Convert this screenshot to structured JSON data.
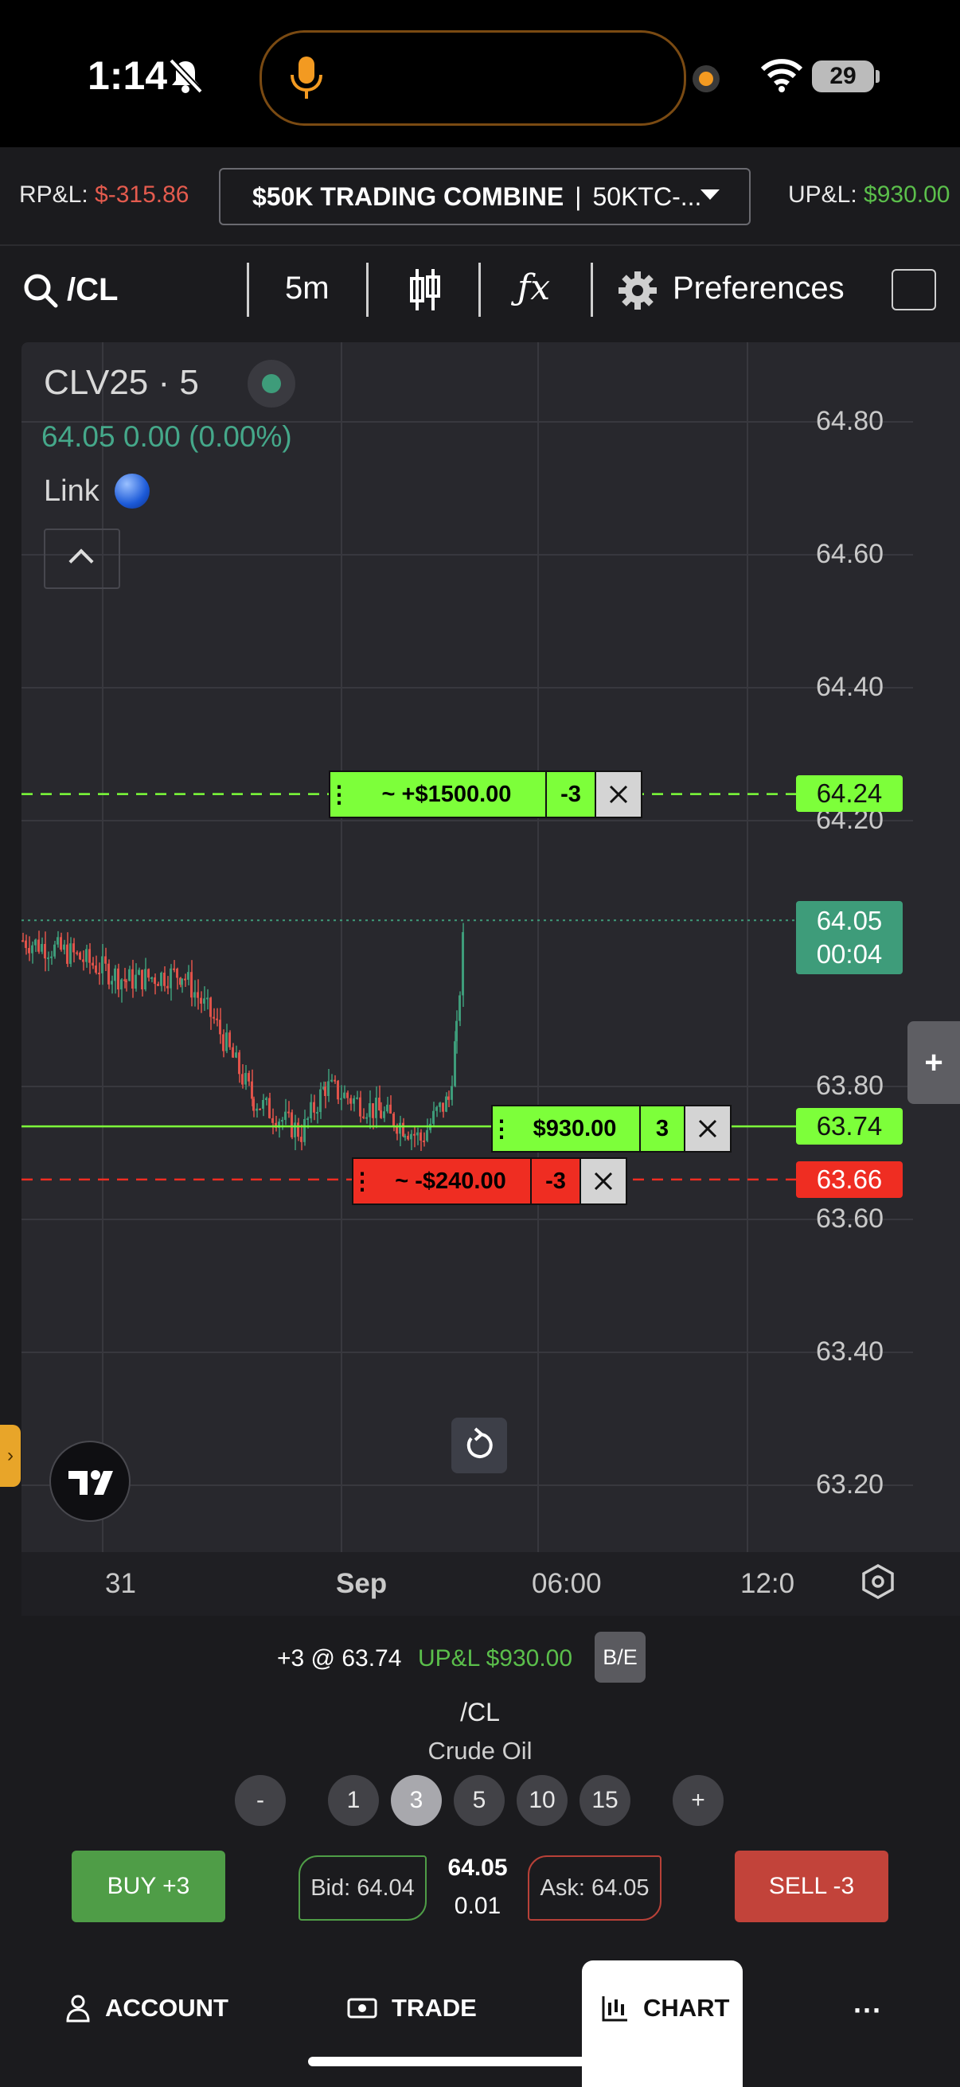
{
  "status_bar": {
    "time": "1:14",
    "battery": "29"
  },
  "account_bar": {
    "rpl_label": "RP&L: ",
    "rpl_value": "$-315.86",
    "account_name": "$50K TRADING COMBINE",
    "separator": "|",
    "account_id": "50KTC-...",
    "upl_label": "UP&L: ",
    "upl_value": "$930.00"
  },
  "toolbar": {
    "symbol": "/CL",
    "interval": "5m",
    "fx_label": "ƒx",
    "preferences": "Preferences"
  },
  "chart_legend": {
    "title": "CLV25 · 5",
    "quote": "64.05  0.00 (0.00%)",
    "link_label": "Link"
  },
  "price_axis": {
    "ticks": [
      "64.80",
      "64.60",
      "64.40",
      "64.20",
      "63.80",
      "63.60",
      "63.40",
      "63.20"
    ]
  },
  "time_axis": {
    "ticks": [
      "31",
      "Sep",
      "06:00",
      "12:0"
    ]
  },
  "orders": {
    "take_profit": {
      "label": "~ +$1500.00",
      "qty": "-3",
      "price": "64.24"
    },
    "position": {
      "label": "$930.00",
      "qty": "3",
      "price": "63.74"
    },
    "stop_loss": {
      "label": "~ -$240.00",
      "qty": "-3",
      "price": "63.66"
    }
  },
  "last_price_label": {
    "price": "64.05",
    "countdown": "00:04"
  },
  "side_plus": "+",
  "side_handle": "›",
  "position_bar": {
    "text": "+3 @ 63.74",
    "upl": "UP&L $930.00",
    "be_button": "B/E"
  },
  "instrument": {
    "symbol": "/CL",
    "name": "Crude Oil"
  },
  "quantity_buttons": [
    "-",
    "1",
    "3",
    "5",
    "10",
    "15",
    "+"
  ],
  "trade_panel": {
    "buy": "BUY +3",
    "bid": "Bid: 64.04",
    "last": "64.05",
    "tick": "0.01",
    "ask": "Ask: 64.05",
    "sell": "SELL -3"
  },
  "nav": {
    "account": "ACCOUNT",
    "trade": "TRADE",
    "chart": "CHART",
    "more": "···"
  },
  "colors": {
    "profit_green": "#5bbf4b",
    "loss_red": "#e45b4e",
    "order_green": "#7dff3a",
    "order_red": "#ef2d22",
    "last_price_teal": "#3e9c7a"
  }
}
